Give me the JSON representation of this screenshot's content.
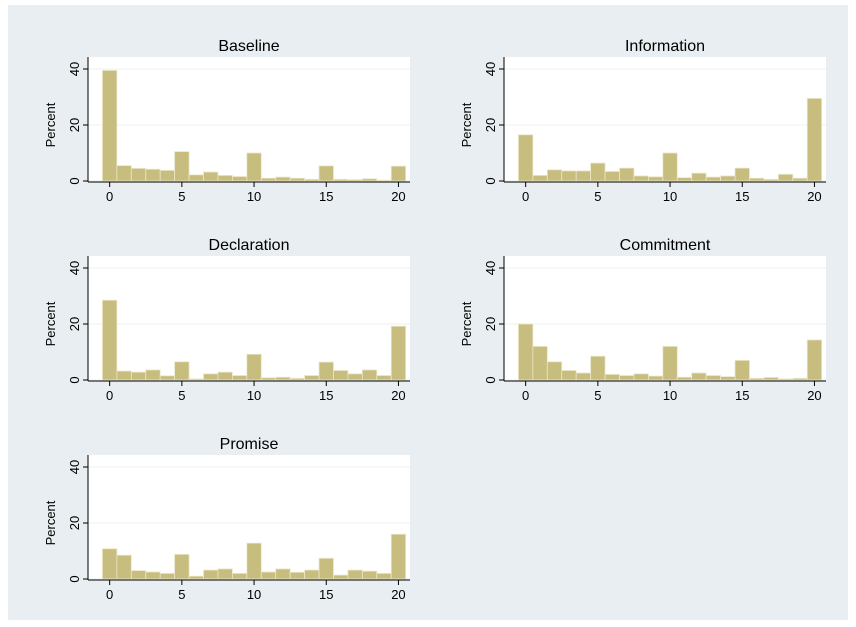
{
  "figure": {
    "background": "#e8eef1",
    "panel_background": "#ffffff",
    "bar_color": "#c7bd7e",
    "bar_edge": "#ece7c8",
    "grid_color": "#eaf0f2"
  },
  "chart_data": [
    {
      "type": "bar",
      "title": "Baseline",
      "ylabel": "Percent",
      "xlabel": "",
      "x": [
        0,
        1,
        2,
        3,
        4,
        5,
        6,
        7,
        8,
        9,
        10,
        11,
        12,
        13,
        14,
        15,
        16,
        17,
        18,
        19,
        20
      ],
      "values": [
        39.5,
        5.5,
        4.5,
        4.2,
        3.8,
        10.5,
        2.2,
        3.2,
        2.0,
        1.6,
        10.0,
        1.0,
        1.4,
        1.0,
        0.6,
        5.4,
        0.6,
        0.5,
        0.8,
        0.3,
        5.3
      ],
      "xlim": [
        -1.5,
        20.8
      ],
      "ylim": [
        0,
        40
      ],
      "xticks": [
        0,
        5,
        10,
        15,
        20
      ],
      "yticks": [
        0,
        20,
        40
      ],
      "grid": true
    },
    {
      "type": "bar",
      "title": "Information",
      "ylabel": "Percent",
      "xlabel": "",
      "x": [
        0,
        1,
        2,
        3,
        4,
        5,
        6,
        7,
        8,
        9,
        10,
        11,
        12,
        13,
        14,
        15,
        16,
        17,
        18,
        19,
        20
      ],
      "values": [
        16.5,
        2.0,
        4.0,
        3.6,
        3.6,
        6.4,
        3.4,
        4.6,
        1.8,
        1.5,
        10.0,
        1.2,
        2.8,
        1.4,
        1.8,
        4.6,
        1.0,
        0.6,
        2.4,
        1.0,
        29.5
      ],
      "xlim": [
        -1.5,
        20.8
      ],
      "ylim": [
        0,
        40
      ],
      "xticks": [
        0,
        5,
        10,
        15,
        20
      ],
      "yticks": [
        0,
        20,
        40
      ],
      "grid": true
    },
    {
      "type": "bar",
      "title": "Declaration",
      "ylabel": "Percent",
      "xlabel": "",
      "x": [
        0,
        1,
        2,
        3,
        4,
        5,
        6,
        7,
        8,
        9,
        10,
        11,
        12,
        13,
        14,
        15,
        16,
        17,
        18,
        19,
        20
      ],
      "values": [
        28.5,
        3.2,
        2.8,
        3.6,
        1.5,
        6.5,
        0.4,
        2.2,
        2.8,
        1.6,
        9.2,
        0.8,
        1.0,
        0.6,
        1.6,
        6.4,
        3.4,
        2.2,
        3.6,
        1.6,
        19.2
      ],
      "xlim": [
        -1.5,
        20.8
      ],
      "ylim": [
        0,
        40
      ],
      "xticks": [
        0,
        5,
        10,
        15,
        20
      ],
      "yticks": [
        0,
        20,
        40
      ],
      "grid": true
    },
    {
      "type": "bar",
      "title": "Commitment",
      "ylabel": "Percent",
      "xlabel": "",
      "x": [
        0,
        1,
        2,
        3,
        4,
        5,
        6,
        7,
        8,
        9,
        10,
        11,
        12,
        13,
        14,
        15,
        16,
        17,
        18,
        19,
        20
      ],
      "values": [
        20.0,
        12.0,
        6.5,
        3.4,
        2.5,
        8.5,
        2.0,
        1.6,
        2.2,
        1.4,
        12.0,
        1.0,
        2.5,
        1.6,
        1.2,
        7.0,
        0.6,
        0.9,
        0.4,
        0.6,
        14.3
      ],
      "xlim": [
        -1.5,
        20.8
      ],
      "ylim": [
        0,
        40
      ],
      "xticks": [
        0,
        5,
        10,
        15,
        20
      ],
      "yticks": [
        0,
        20,
        40
      ],
      "grid": true
    },
    {
      "type": "bar",
      "title": "Promise",
      "ylabel": "Percent",
      "xlabel": "",
      "x": [
        0,
        1,
        2,
        3,
        4,
        5,
        6,
        7,
        8,
        9,
        10,
        11,
        12,
        13,
        14,
        15,
        16,
        17,
        18,
        19,
        20
      ],
      "values": [
        10.8,
        8.5,
        3.0,
        2.5,
        2.0,
        8.8,
        1.0,
        3.2,
        3.6,
        2.0,
        12.8,
        2.5,
        3.6,
        2.4,
        3.2,
        7.4,
        1.4,
        3.2,
        2.8,
        2.0,
        16.0
      ],
      "xlim": [
        -1.5,
        20.8
      ],
      "ylim": [
        0,
        40
      ],
      "xticks": [
        0,
        5,
        10,
        15,
        20
      ],
      "yticks": [
        0,
        20,
        40
      ],
      "grid": true
    }
  ]
}
